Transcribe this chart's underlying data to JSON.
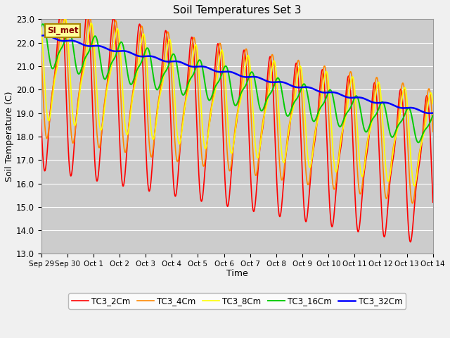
{
  "title": "Soil Temperatures Set 3",
  "xlabel": "Time",
  "ylabel": "Soil Temperature (C)",
  "ylim": [
    13.0,
    23.0
  ],
  "yticks": [
    13.0,
    14.0,
    15.0,
    16.0,
    17.0,
    18.0,
    19.0,
    20.0,
    21.0,
    22.0,
    23.0
  ],
  "xtick_labels": [
    "Sep 29",
    "Sep 30",
    "Oct 1",
    "Oct 2",
    "Oct 3",
    "Oct 4",
    "Oct 5",
    "Oct 6",
    "Oct 7",
    "Oct 8",
    "Oct 9",
    "Oct 10",
    "Oct 11",
    "Oct 12",
    "Oct 13",
    "Oct 14"
  ],
  "series_colors": [
    "#ff0000",
    "#ff8800",
    "#ffff00",
    "#00cc00",
    "#0000ff"
  ],
  "series_names": [
    "TC3_2Cm",
    "TC3_4Cm",
    "TC3_8Cm",
    "TC3_16Cm",
    "TC3_32Cm"
  ],
  "fig_bg_color": "#f0f0f0",
  "plot_bg_color": "#cccccc",
  "annotation_text": "SI_met",
  "annotation_bg": "#ffff99",
  "annotation_border": "#aa8800",
  "n_days": 15,
  "points_per_day": 96,
  "figwidth": 6.4,
  "figheight": 4.8,
  "dpi": 100
}
